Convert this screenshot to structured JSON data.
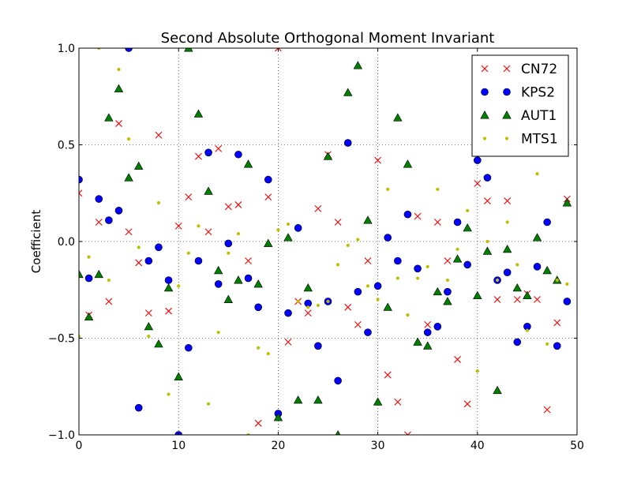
{
  "chart_data": {
    "type": "scatter",
    "title": "Second Absolute Orthogonal Moment Invariant",
    "xlabel": "",
    "ylabel": "Coefficient",
    "xlim": [
      0,
      50
    ],
    "ylim": [
      -1.0,
      1.0
    ],
    "xticks": [
      0,
      10,
      20,
      30,
      40,
      50
    ],
    "xtick_labels": [
      "0",
      "10",
      "20",
      "30",
      "40",
      "50"
    ],
    "yticks": [
      -1.0,
      -0.5,
      0.0,
      0.5,
      1.0
    ],
    "ytick_labels": [
      "−1.0",
      "−0.5",
      "0.0",
      "0.5",
      "1.0"
    ],
    "grid": true,
    "legend_position": "top-right",
    "series": [
      {
        "name": "CN72",
        "marker": "x",
        "color": "#ff0000",
        "x": [
          0,
          1,
          2,
          3,
          4,
          5,
          6,
          7,
          8,
          9,
          10,
          11,
          12,
          13,
          14,
          15,
          16,
          17,
          18,
          19,
          20,
          21,
          22,
          23,
          24,
          25,
          26,
          27,
          28,
          29,
          30,
          31,
          32,
          33,
          34,
          35,
          36,
          37,
          38,
          39,
          40,
          41,
          42,
          43,
          44,
          45,
          46,
          47,
          48,
          49
        ],
        "y": [
          0.25,
          -0.38,
          0.1,
          -0.31,
          0.61,
          0.05,
          -0.11,
          -0.37,
          0.55,
          -0.36,
          0.08,
          0.23,
          0.44,
          0.05,
          0.48,
          0.18,
          0.19,
          -0.1,
          -0.94,
          0.23,
          1.0,
          -0.52,
          -0.31,
          -0.37,
          0.17,
          0.45,
          0.1,
          -0.34,
          -0.43,
          -0.1,
          0.42,
          -0.69,
          -0.83,
          -1.0,
          0.13,
          -0.43,
          0.1,
          -0.1,
          -0.61,
          -0.84,
          0.3,
          0.21,
          -0.3,
          0.21,
          -0.3,
          -0.27,
          -0.3,
          -0.87,
          -0.42,
          0.22
        ]
      },
      {
        "name": "KPS2",
        "marker": "o",
        "color": "#0000ff",
        "x": [
          0,
          1,
          2,
          3,
          4,
          5,
          6,
          7,
          8,
          9,
          10,
          11,
          12,
          13,
          14,
          15,
          16,
          17,
          18,
          19,
          20,
          21,
          22,
          23,
          24,
          25,
          26,
          27,
          28,
          29,
          30,
          31,
          32,
          33,
          34,
          35,
          36,
          37,
          38,
          39,
          40,
          41,
          42,
          43,
          44,
          45,
          46,
          47,
          48,
          49
        ],
        "y": [
          0.32,
          -0.19,
          0.22,
          0.11,
          0.16,
          1.0,
          -0.86,
          -0.1,
          -0.03,
          -0.2,
          -1.0,
          -0.55,
          -0.1,
          0.46,
          -0.22,
          -0.01,
          0.45,
          -0.19,
          -0.34,
          0.32,
          -0.89,
          -0.37,
          0.07,
          -0.32,
          -0.54,
          -0.31,
          -0.72,
          0.51,
          -0.26,
          -0.47,
          -0.23,
          0.02,
          -0.1,
          0.14,
          -0.14,
          -0.47,
          -0.44,
          -0.26,
          0.1,
          -0.12,
          0.42,
          0.33,
          -0.2,
          -0.16,
          -0.52,
          -0.44,
          -0.13,
          0.1,
          -0.54,
          -0.31
        ]
      },
      {
        "name": "AUT1",
        "marker": "^",
        "color": "#007f00",
        "x": [
          0,
          1,
          2,
          3,
          4,
          5,
          6,
          7,
          8,
          9,
          10,
          11,
          12,
          13,
          14,
          15,
          16,
          17,
          18,
          19,
          20,
          21,
          22,
          23,
          24,
          25,
          26,
          27,
          28,
          29,
          30,
          31,
          32,
          33,
          34,
          35,
          36,
          37,
          38,
          39,
          40,
          41,
          42,
          43,
          44,
          45,
          46,
          47,
          48,
          49
        ],
        "y": [
          -0.17,
          -0.39,
          -0.17,
          0.64,
          0.79,
          0.33,
          0.39,
          -0.44,
          -0.53,
          -0.24,
          -0.7,
          1.0,
          0.66,
          0.26,
          -0.15,
          -0.3,
          -0.2,
          0.4,
          -0.22,
          -0.01,
          -0.91,
          0.02,
          -0.82,
          -0.24,
          -0.82,
          0.44,
          -1.0,
          0.77,
          0.91,
          0.11,
          -0.83,
          -0.34,
          0.64,
          0.4,
          -0.52,
          -0.54,
          -0.26,
          -0.31,
          -0.09,
          0.07,
          -0.28,
          -0.05,
          -0.77,
          -0.04,
          -0.24,
          -0.28,
          0.02,
          -0.15,
          -0.2,
          0.2
        ]
      },
      {
        "name": "MTS1",
        "marker": ".",
        "color": "#bfbf00",
        "x": [
          0,
          1,
          2,
          3,
          4,
          5,
          6,
          7,
          8,
          9,
          10,
          11,
          12,
          13,
          14,
          15,
          16,
          17,
          18,
          19,
          20,
          21,
          22,
          23,
          24,
          25,
          26,
          27,
          28,
          29,
          30,
          31,
          32,
          33,
          34,
          35,
          36,
          37,
          38,
          39,
          40,
          41,
          42,
          43,
          44,
          45,
          46,
          47,
          48,
          49
        ],
        "y": [
          -0.49,
          -0.08,
          1.0,
          -0.2,
          0.89,
          0.53,
          -0.03,
          -0.49,
          0.2,
          -0.79,
          -0.23,
          -0.06,
          0.08,
          -0.84,
          -0.47,
          -0.06,
          0.04,
          -1.0,
          -0.55,
          -0.58,
          0.06,
          0.09,
          -0.31,
          -0.34,
          -0.33,
          -0.31,
          -0.12,
          -0.02,
          0.01,
          -0.23,
          -0.3,
          0.27,
          -0.19,
          -0.38,
          -0.19,
          -0.13,
          0.27,
          -0.2,
          -0.04,
          0.16,
          -0.67,
          0.0,
          -0.2,
          0.1,
          -0.12,
          -0.46,
          0.35,
          -0.53,
          -0.2,
          -0.22
        ]
      }
    ]
  }
}
